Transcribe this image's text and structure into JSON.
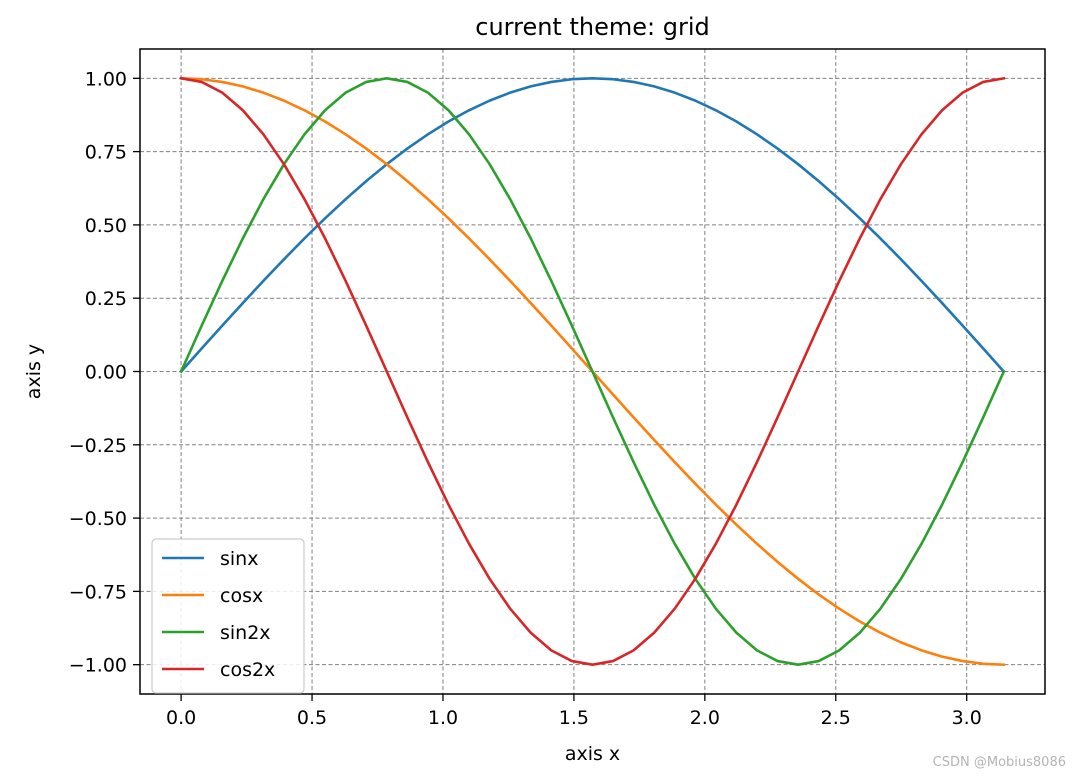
{
  "chart_data": {
    "type": "line",
    "title": "current theme: grid",
    "xlabel": "axis x",
    "ylabel": "axis y",
    "xlim": [
      -0.157,
      3.299
    ],
    "ylim": [
      -1.1,
      1.1
    ],
    "xticks": [
      0.0,
      0.5,
      1.0,
      1.5,
      2.0,
      2.5,
      3.0
    ],
    "xtick_labels": [
      "0.0",
      "0.5",
      "1.0",
      "1.5",
      "2.0",
      "2.5",
      "3.0"
    ],
    "yticks": [
      1.0,
      0.75,
      0.5,
      0.25,
      0.0,
      -0.25,
      -0.5,
      -0.75,
      -1.0
    ],
    "ytick_labels": [
      "1.00",
      "0.75",
      "0.50",
      "0.25",
      "0.00",
      "−0.25",
      "−0.50",
      "−0.75",
      "−1.00"
    ],
    "grid": true,
    "grid_style": "dashed",
    "legend_position": "lower-left",
    "x": [
      0.0,
      0.0785,
      0.1571,
      0.2356,
      0.3142,
      0.3927,
      0.4712,
      0.5498,
      0.6283,
      0.7069,
      0.7854,
      0.8639,
      0.9425,
      1.021,
      1.0996,
      1.1781,
      1.2566,
      1.3352,
      1.4137,
      1.4923,
      1.5708,
      1.6493,
      1.7279,
      1.8064,
      1.885,
      1.9635,
      2.042,
      2.1206,
      2.1991,
      2.2777,
      2.3562,
      2.4347,
      2.5133,
      2.5918,
      2.6704,
      2.7489,
      2.8274,
      2.906,
      2.9845,
      3.0631,
      3.1416
    ],
    "series": [
      {
        "name": "sinx",
        "color": "#1f77b4",
        "values": [
          0.0,
          0.0785,
          0.1564,
          0.2334,
          0.309,
          0.3827,
          0.454,
          0.5225,
          0.5878,
          0.6494,
          0.7071,
          0.7604,
          0.809,
          0.8526,
          0.891,
          0.9239,
          0.9511,
          0.9724,
          0.9877,
          0.9969,
          1.0,
          0.9969,
          0.9877,
          0.9724,
          0.9511,
          0.9239,
          0.891,
          0.8526,
          0.809,
          0.7604,
          0.7071,
          0.6494,
          0.5878,
          0.5225,
          0.454,
          0.3827,
          0.309,
          0.2334,
          0.1564,
          0.0785,
          0.0
        ]
      },
      {
        "name": "cosx",
        "color": "#ff7f0e",
        "values": [
          1.0,
          0.9969,
          0.9877,
          0.9724,
          0.9511,
          0.9239,
          0.891,
          0.8526,
          0.809,
          0.7604,
          0.7071,
          0.6494,
          0.5878,
          0.5225,
          0.454,
          0.3827,
          0.309,
          0.2334,
          0.1564,
          0.0785,
          0.0,
          -0.0785,
          -0.1564,
          -0.2334,
          -0.309,
          -0.3827,
          -0.454,
          -0.5225,
          -0.5878,
          -0.6494,
          -0.7071,
          -0.7604,
          -0.809,
          -0.8526,
          -0.891,
          -0.9239,
          -0.9511,
          -0.9724,
          -0.9877,
          -0.9969,
          -1.0
        ]
      },
      {
        "name": "sin2x",
        "color": "#2ca02c",
        "values": [
          0.0,
          0.1564,
          0.309,
          0.454,
          0.5878,
          0.7071,
          0.809,
          0.891,
          0.9511,
          0.9877,
          1.0,
          0.9877,
          0.9511,
          0.891,
          0.809,
          0.7071,
          0.5878,
          0.454,
          0.309,
          0.1564,
          0.0,
          -0.1564,
          -0.309,
          -0.454,
          -0.5878,
          -0.7071,
          -0.809,
          -0.891,
          -0.9511,
          -0.9877,
          -1.0,
          -0.9877,
          -0.9511,
          -0.891,
          -0.809,
          -0.7071,
          -0.5878,
          -0.454,
          -0.309,
          -0.1564,
          0.0
        ]
      },
      {
        "name": "cos2x",
        "color": "#d62728",
        "values": [
          1.0,
          0.9877,
          0.9511,
          0.891,
          0.809,
          0.7071,
          0.5878,
          0.454,
          0.309,
          0.1564,
          0.0,
          -0.1564,
          -0.309,
          -0.454,
          -0.5878,
          -0.7071,
          -0.809,
          -0.891,
          -0.9511,
          -0.9877,
          -1.0,
          -0.9877,
          -0.9511,
          -0.891,
          -0.809,
          -0.7071,
          -0.5878,
          -0.454,
          -0.309,
          -0.1564,
          0.0,
          0.1564,
          0.309,
          0.454,
          0.5878,
          0.7071,
          0.809,
          0.891,
          0.9511,
          0.9877,
          1.0
        ]
      }
    ]
  },
  "watermark": "CSDN @Mobius8086"
}
